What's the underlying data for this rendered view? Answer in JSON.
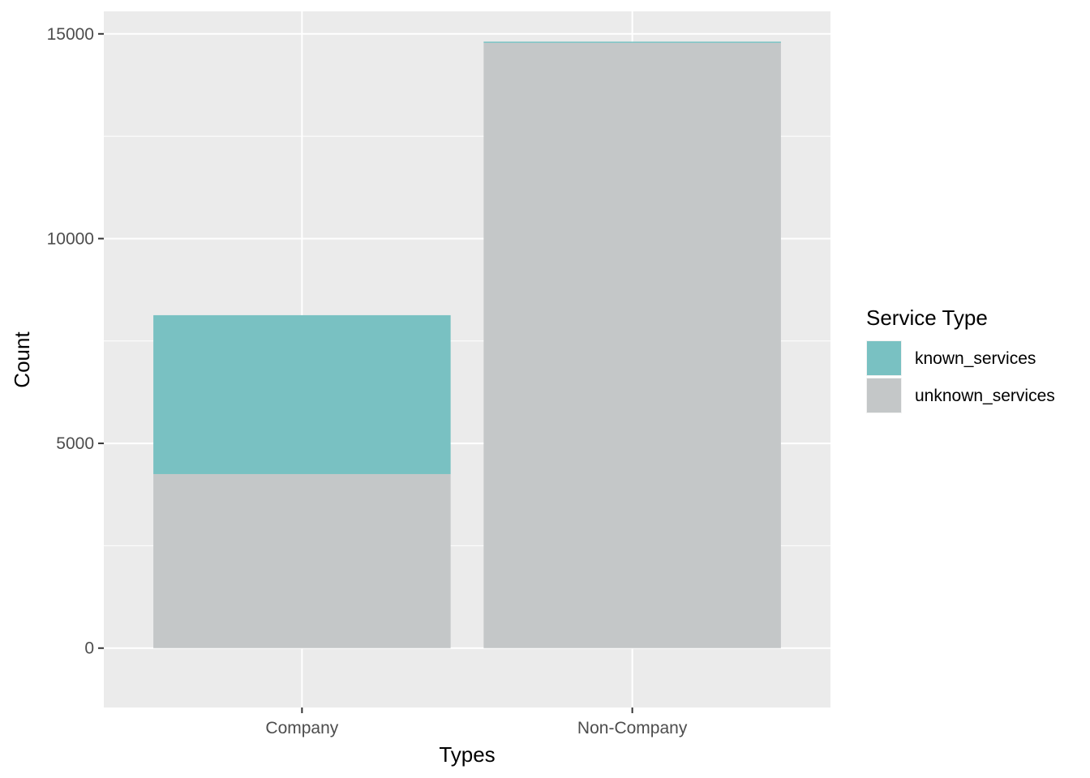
{
  "chart_data": {
    "type": "bar",
    "stacked": true,
    "categories": [
      "Company",
      "Non-Company"
    ],
    "series": [
      {
        "name": "unknown_services",
        "values": [
          4250,
          14780
        ],
        "color": "#C4C7C8"
      },
      {
        "name": "known_services",
        "values": [
          3880,
          30
        ],
        "color": "#79C1C2"
      }
    ],
    "xlabel": "Types",
    "ylabel": "Count",
    "ylim": [
      -1450,
      15550
    ],
    "yticks": [
      0,
      5000,
      10000,
      15000
    ],
    "grid": true,
    "legend": {
      "title": "Service Type",
      "placement": "right",
      "order": [
        "known_services",
        "unknown_services"
      ]
    },
    "colors": {
      "panel": "#EBEBEB",
      "grid": "#FFFFFF",
      "tick": "#333333"
    }
  }
}
